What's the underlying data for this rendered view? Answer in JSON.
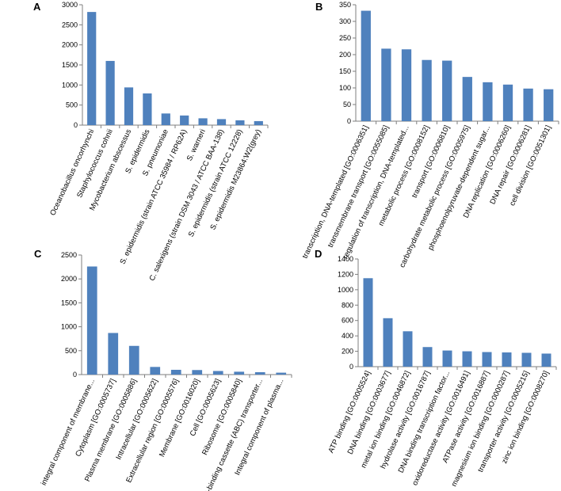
{
  "colors": {
    "bar": "#4f81bd",
    "axis": "#7f7f7f",
    "text": "#000000"
  },
  "chart_data": [
    {
      "panel": "A",
      "type": "bar",
      "title": "",
      "xlabel": "",
      "ylabel": "",
      "ylim": [
        0,
        3000
      ],
      "ytick_step": 500,
      "categories": [
        "Oceanobacillus oncorhynchi",
        "Staphylococcus cohnii",
        "Mycobacterium abscessus",
        "S. epidermidis",
        "S. pneumoniae",
        "S. epidermidis (strain ATCC 35984 / RP62A)",
        "S. warneri",
        "C. salexigens (strain DSM 3043 / ATCC BAA-138)",
        "S. epidermidis (strain ATCC 12228)",
        "S. epidermidis M23864:W2(grey)"
      ],
      "values": [
        2820,
        1600,
        940,
        790,
        290,
        240,
        170,
        150,
        120,
        100
      ]
    },
    {
      "panel": "B",
      "type": "bar",
      "title": "",
      "xlabel": "",
      "ylabel": "",
      "ylim": [
        0,
        350
      ],
      "ytick_step": 50,
      "categories": [
        "transcription, DNA-templated [GO:0006351]",
        "transmembrane transport [GO:0055085]",
        "regulation of transcription, DNA-templated...",
        "metabolic process [GO:0008152]",
        "transport [GO:0006810]",
        "carbohydrate metabolic process [GO:0005975]",
        "phosphoenolpyruvate-dependent sugar...",
        "DNA replication [GO:0006260]",
        "DNA repair [GO:0006281]",
        "cell division [GO:0051301]"
      ],
      "values": [
        332,
        218,
        216,
        184,
        182,
        133,
        117,
        110,
        98,
        96
      ]
    },
    {
      "panel": "C",
      "type": "bar",
      "title": "",
      "xlabel": "",
      "ylabel": "",
      "ylim": [
        0,
        2500
      ],
      "ytick_step": 500,
      "categories": [
        "integral component of membrane...",
        "Cytoplasm [GO:0005737]",
        "Plasma membrane [GO:0005886]",
        "Intracellular [GO:0005622]",
        "Extracellular region [GO:0005576]",
        "Membrane [GO:0016020]",
        "Cell [GO:0005623]",
        "Ribosome [GO:0005840]",
        "ATP-binding cassette (ABC) transporter...",
        "Integral component of plasma..."
      ],
      "values": [
        2260,
        870,
        600,
        160,
        100,
        95,
        75,
        60,
        50,
        40
      ]
    },
    {
      "panel": "D",
      "type": "bar",
      "title": "",
      "xlabel": "",
      "ylabel": "",
      "ylim": [
        0,
        1400
      ],
      "ytick_step": 200,
      "categories": [
        "ATP binding [GO:0005524]",
        "DNA binding [GO:0003677]",
        "metal ion binding [GO:0046872]",
        "hydrolase activity [GO:0016787]",
        "DNA binding transcription factor...",
        "oxidoreductase activity [GO:0016491]",
        "ATPase activity [GO:0016887]",
        "magnesium ion binding [GO:0000287]",
        "transporter activity [GO:0005215]",
        "zinc ion binding [GO:0008270]"
      ],
      "values": [
        1150,
        630,
        460,
        255,
        210,
        200,
        190,
        185,
        180,
        170
      ]
    }
  ]
}
